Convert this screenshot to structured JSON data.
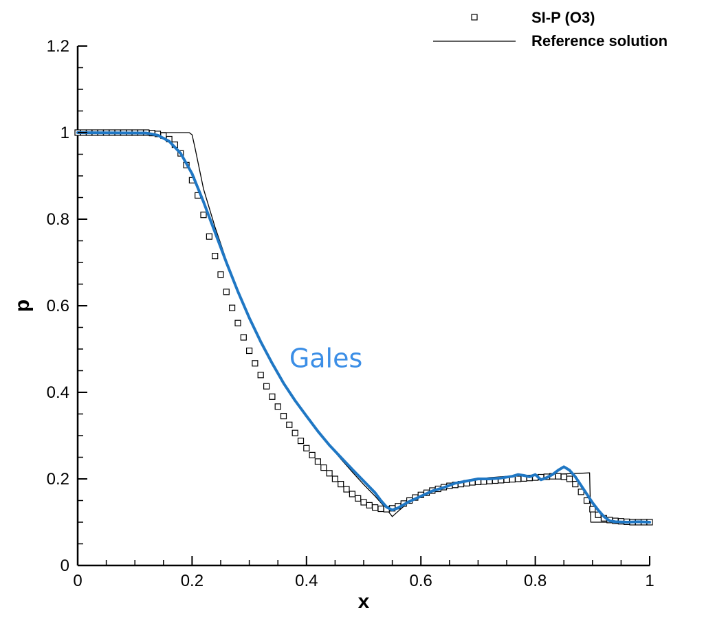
{
  "chart_data": {
    "type": "line",
    "xlabel": "x",
    "ylabel": "p",
    "xlim": [
      0,
      1
    ],
    "ylim": [
      0,
      1.2
    ],
    "x_ticks": [
      0,
      0.2,
      0.4,
      0.6,
      0.8,
      1
    ],
    "x_tick_labels": [
      "0",
      "0.2",
      "0.4",
      "0.6",
      "0.8",
      "1"
    ],
    "y_ticks": [
      0,
      0.2,
      0.4,
      0.6,
      0.8,
      1,
      1.2
    ],
    "y_tick_labels": [
      "0",
      "0.2",
      "0.4",
      "0.6",
      "0.8",
      "1",
      "1.2"
    ],
    "grid": false,
    "legend_position": "top-right",
    "annotation": {
      "text": "Gales",
      "x": 0.37,
      "y": 0.48,
      "color": "#3b8ee6"
    },
    "series": [
      {
        "name": "SI-P (O3)",
        "style": "square-markers",
        "color": "#000000",
        "x": [
          0.0,
          0.01,
          0.02,
          0.03,
          0.04,
          0.05,
          0.06,
          0.07,
          0.08,
          0.09,
          0.1,
          0.11,
          0.12,
          0.13,
          0.14,
          0.15,
          0.16,
          0.17,
          0.18,
          0.19,
          0.2,
          0.21,
          0.22,
          0.23,
          0.24,
          0.25,
          0.26,
          0.27,
          0.28,
          0.29,
          0.3,
          0.31,
          0.32,
          0.33,
          0.34,
          0.35,
          0.36,
          0.37,
          0.38,
          0.39,
          0.4,
          0.41,
          0.42,
          0.43,
          0.44,
          0.45,
          0.46,
          0.47,
          0.48,
          0.49,
          0.5,
          0.51,
          0.52,
          0.53,
          0.54,
          0.55,
          0.56,
          0.57,
          0.58,
          0.59,
          0.6,
          0.61,
          0.62,
          0.63,
          0.64,
          0.65,
          0.66,
          0.67,
          0.68,
          0.69,
          0.7,
          0.71,
          0.72,
          0.73,
          0.74,
          0.75,
          0.76,
          0.77,
          0.78,
          0.79,
          0.8,
          0.81,
          0.82,
          0.83,
          0.84,
          0.85,
          0.86,
          0.87,
          0.88,
          0.89,
          0.9,
          0.91,
          0.92,
          0.93,
          0.94,
          0.95,
          0.96,
          0.97,
          0.98,
          0.99,
          1.0
        ],
        "y": [
          1.0,
          1.0,
          1.0,
          1.0,
          1.0,
          1.0,
          1.0,
          1.0,
          1.0,
          1.0,
          1.0,
          1.0,
          1.0,
          0.999,
          0.997,
          0.993,
          0.985,
          0.972,
          0.952,
          0.925,
          0.89,
          0.855,
          0.81,
          0.76,
          0.715,
          0.672,
          0.632,
          0.595,
          0.56,
          0.527,
          0.496,
          0.467,
          0.44,
          0.414,
          0.39,
          0.367,
          0.345,
          0.325,
          0.306,
          0.288,
          0.271,
          0.255,
          0.24,
          0.226,
          0.213,
          0.2,
          0.188,
          0.176,
          0.165,
          0.155,
          0.146,
          0.139,
          0.134,
          0.131,
          0.13,
          0.132,
          0.137,
          0.143,
          0.15,
          0.157,
          0.163,
          0.168,
          0.173,
          0.177,
          0.181,
          0.184,
          0.186,
          0.188,
          0.19,
          0.192,
          0.193,
          0.194,
          0.195,
          0.196,
          0.197,
          0.198,
          0.199,
          0.2,
          0.201,
          0.202,
          0.203,
          0.204,
          0.205,
          0.206,
          0.206,
          0.205,
          0.2,
          0.188,
          0.17,
          0.15,
          0.13,
          0.117,
          0.109,
          0.105,
          0.103,
          0.102,
          0.101,
          0.1,
          0.1,
          0.1,
          0.1
        ]
      },
      {
        "name": "Reference solution",
        "style": "thin-line",
        "color": "#000000",
        "x": [
          0.0,
          0.195,
          0.2,
          0.205,
          0.22,
          0.24,
          0.26,
          0.28,
          0.3,
          0.32,
          0.34,
          0.36,
          0.38,
          0.4,
          0.42,
          0.44,
          0.46,
          0.48,
          0.5,
          0.52,
          0.54,
          0.55,
          0.56,
          0.58,
          0.6,
          0.62,
          0.64,
          0.66,
          0.68,
          0.7,
          0.72,
          0.74,
          0.76,
          0.78,
          0.8,
          0.82,
          0.84,
          0.86,
          0.88,
          0.895,
          0.897,
          0.9,
          1.0
        ],
        "y": [
          1.0,
          1.0,
          0.995,
          0.965,
          0.87,
          0.782,
          0.705,
          0.637,
          0.575,
          0.52,
          0.47,
          0.424,
          0.383,
          0.345,
          0.31,
          0.277,
          0.246,
          0.216,
          0.187,
          0.16,
          0.13,
          0.113,
          0.125,
          0.148,
          0.164,
          0.176,
          0.185,
          0.191,
          0.196,
          0.2,
          0.203,
          0.205,
          0.207,
          0.208,
          0.209,
          0.21,
          0.211,
          0.212,
          0.213,
          0.214,
          0.1,
          0.1,
          0.1
        ]
      },
      {
        "name": "",
        "style": "thick-line",
        "color": "#1f77c4",
        "x": [
          0.0,
          0.12,
          0.14,
          0.16,
          0.18,
          0.2,
          0.22,
          0.24,
          0.26,
          0.28,
          0.3,
          0.32,
          0.34,
          0.36,
          0.38,
          0.4,
          0.42,
          0.44,
          0.46,
          0.48,
          0.5,
          0.52,
          0.53,
          0.54,
          0.55,
          0.56,
          0.58,
          0.6,
          0.62,
          0.64,
          0.66,
          0.68,
          0.7,
          0.72,
          0.74,
          0.76,
          0.77,
          0.78,
          0.79,
          0.8,
          0.81,
          0.82,
          0.83,
          0.84,
          0.85,
          0.86,
          0.87,
          0.88,
          0.89,
          0.9,
          0.91,
          0.92,
          0.93,
          0.94,
          0.96,
          0.98,
          1.0
        ],
        "y": [
          1.0,
          0.999,
          0.994,
          0.98,
          0.952,
          0.905,
          0.84,
          0.77,
          0.7,
          0.633,
          0.572,
          0.517,
          0.467,
          0.421,
          0.381,
          0.345,
          0.31,
          0.278,
          0.25,
          0.222,
          0.195,
          0.168,
          0.15,
          0.135,
          0.128,
          0.133,
          0.148,
          0.16,
          0.172,
          0.18,
          0.19,
          0.195,
          0.2,
          0.2,
          0.202,
          0.206,
          0.21,
          0.208,
          0.205,
          0.21,
          0.198,
          0.203,
          0.21,
          0.22,
          0.228,
          0.22,
          0.205,
          0.185,
          0.165,
          0.145,
          0.128,
          0.113,
          0.103,
          0.101,
          0.1,
          0.101,
          0.1
        ]
      }
    ]
  }
}
